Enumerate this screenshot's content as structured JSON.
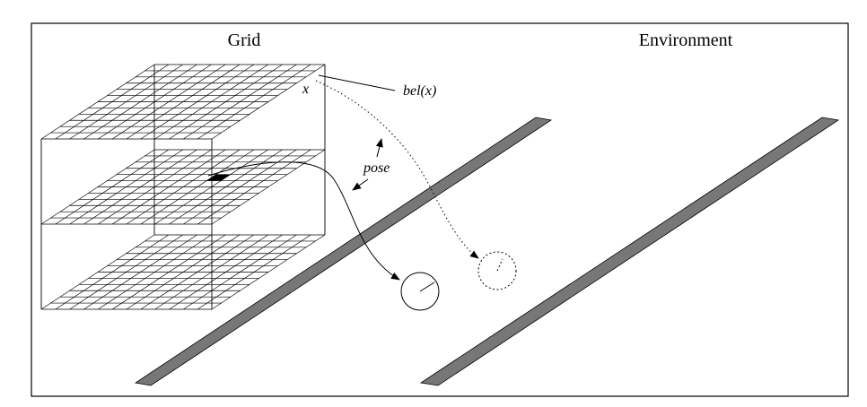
{
  "panels": {
    "left_title": "Grid",
    "right_title": "Environment"
  },
  "labels": {
    "x": "x",
    "bel": "bel(x)",
    "pose": "pose"
  },
  "grid": {
    "layers": 3,
    "cells_per_side": 12,
    "highlighted_cell": [
      7,
      4
    ]
  },
  "colors": {
    "wall": "#777777",
    "line": "#000000",
    "highlight": "#000000"
  }
}
